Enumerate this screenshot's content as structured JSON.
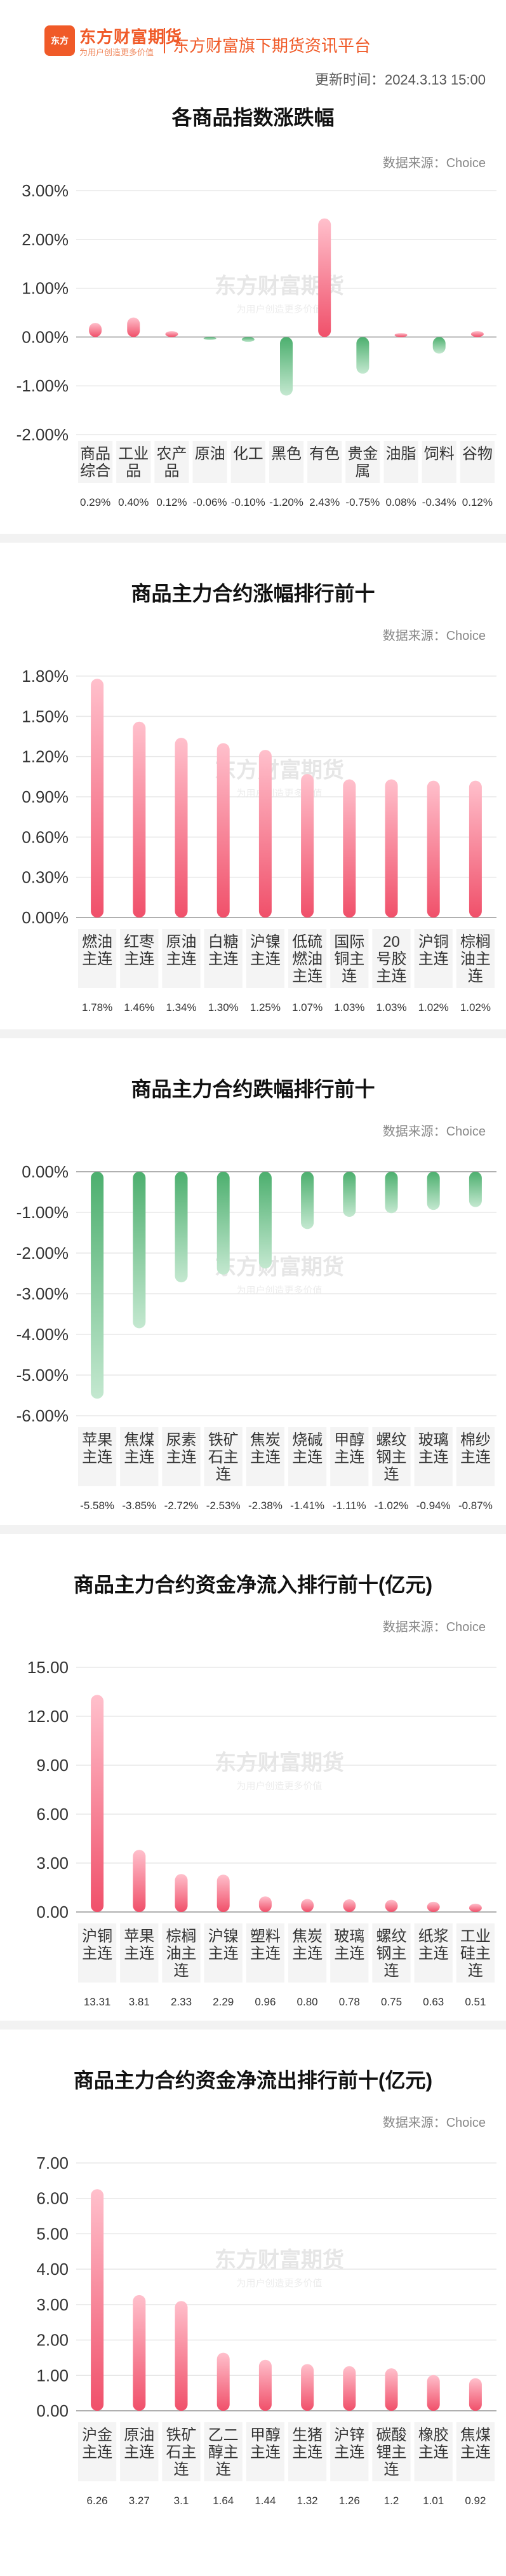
{
  "header": {
    "logo_mark": "东方",
    "logo_name": "东方财富期货",
    "logo_slogan": "为用户创造更多价值",
    "platform_title": "东方财富旗下期货资讯平台",
    "update_time": "更新时间：2024.3.13 15:00"
  },
  "source_label": "数据来源：Choice",
  "watermark": {
    "main": "东方财富期货",
    "sub": "为用户创造更多价值"
  },
  "colors": {
    "positive": "#f0506a",
    "positive_light": "#ffc0cc",
    "negative": "#4caf6e",
    "negative_light": "#c4e8d0",
    "brand": "#f05a28"
  },
  "chart_data": [
    {
      "type": "bar",
      "title": "各商品指数涨跌幅",
      "categories": [
        "商品综合",
        "工业品",
        "农产品",
        "原油",
        "化工",
        "黑色",
        "有色",
        "贵金属",
        "油脂",
        "饲料",
        "谷物"
      ],
      "values": [
        0.29,
        0.4,
        0.12,
        -0.06,
        -0.1,
        -1.2,
        2.43,
        -0.75,
        0.08,
        -0.34,
        0.12
      ],
      "value_labels": [
        "0.29%",
        "0.40%",
        "0.12%",
        "-0.06%",
        "-0.10%",
        "-1.20%",
        "2.43%",
        "-0.75%",
        "0.08%",
        "-0.34%",
        "0.12%"
      ],
      "yticks": [
        "3.00%",
        "2.00%",
        "1.00%",
        "0.00%",
        "-1.00%",
        "-2.00%"
      ],
      "ylim": [
        -2,
        3
      ]
    },
    {
      "type": "bar",
      "title": "商品主力合约涨幅排行前十",
      "categories": [
        "燃油主连",
        "红枣主连",
        "原油主连",
        "白糖主连",
        "沪镍主连",
        "低硫燃油主连",
        "国际铜主连",
        "20号胶主连",
        "沪铜主连",
        "棕榈油主连"
      ],
      "values": [
        1.78,
        1.46,
        1.34,
        1.3,
        1.25,
        1.07,
        1.03,
        1.03,
        1.02,
        1.02
      ],
      "value_labels": [
        "1.78%",
        "1.46%",
        "1.34%",
        "1.30%",
        "1.25%",
        "1.07%",
        "1.03%",
        "1.03%",
        "1.02%",
        "1.02%"
      ],
      "yticks": [
        "1.80%",
        "1.50%",
        "1.20%",
        "0.90%",
        "0.60%",
        "0.30%",
        "0.00%"
      ],
      "ylim": [
        0,
        1.8
      ]
    },
    {
      "type": "bar",
      "title": "商品主力合约跌幅排行前十",
      "categories": [
        "苹果主连",
        "焦煤主连",
        "尿素主连",
        "铁矿石主连",
        "焦炭主连",
        "烧碱主连",
        "甲醇主连",
        "螺纹钢主连",
        "玻璃主连",
        "棉纱主连"
      ],
      "values": [
        -5.58,
        -3.85,
        -2.72,
        -2.53,
        -2.38,
        -1.41,
        -1.11,
        -1.02,
        -0.94,
        -0.87
      ],
      "value_labels": [
        "-5.58%",
        "-3.85%",
        "-2.72%",
        "-2.53%",
        "-2.38%",
        "-1.41%",
        "-1.11%",
        "-1.02%",
        "-0.94%",
        "-0.87%"
      ],
      "yticks": [
        "0.00%",
        "-1.00%",
        "-2.00%",
        "-3.00%",
        "-4.00%",
        "-5.00%",
        "-6.00%"
      ],
      "ylim": [
        -6,
        0
      ]
    },
    {
      "type": "bar",
      "title": "商品主力合约资金净流入排行前十(亿元)",
      "categories": [
        "沪铜主连",
        "苹果主连",
        "棕榈油主连",
        "沪镍主连",
        "塑料主连",
        "焦炭主连",
        "玻璃主连",
        "螺纹钢主连",
        "纸浆主连",
        "工业硅主连"
      ],
      "values": [
        13.31,
        3.81,
        2.33,
        2.29,
        0.96,
        0.8,
        0.78,
        0.75,
        0.63,
        0.51
      ],
      "value_labels": [
        "13.31",
        "3.81",
        "2.33",
        "2.29",
        "0.96",
        "0.80",
        "0.78",
        "0.75",
        "0.63",
        "0.51"
      ],
      "yticks": [
        "15.00",
        "12.00",
        "9.00",
        "6.00",
        "3.00",
        "0.00"
      ],
      "ylim": [
        0,
        15
      ]
    },
    {
      "type": "bar",
      "title": "商品主力合约资金净流出排行前十(亿元)",
      "categories": [
        "沪金主连",
        "原油主连",
        "铁矿石主连",
        "乙二醇主连",
        "甲醇主连",
        "生猪主连",
        "沪锌主连",
        "碳酸锂主连",
        "橡胶主连",
        "焦煤主连"
      ],
      "values": [
        6.26,
        3.27,
        3.1,
        1.64,
        1.44,
        1.32,
        1.26,
        1.2,
        1.01,
        0.92
      ],
      "value_labels": [
        "6.26",
        "3.27",
        "3.1",
        "1.64",
        "1.44",
        "1.32",
        "1.26",
        "1.2",
        "1.01",
        "0.92"
      ],
      "yticks": [
        "7.00",
        "6.00",
        "5.00",
        "4.00",
        "3.00",
        "2.00",
        "1.00",
        "0.00"
      ],
      "ylim": [
        0,
        7
      ]
    }
  ]
}
